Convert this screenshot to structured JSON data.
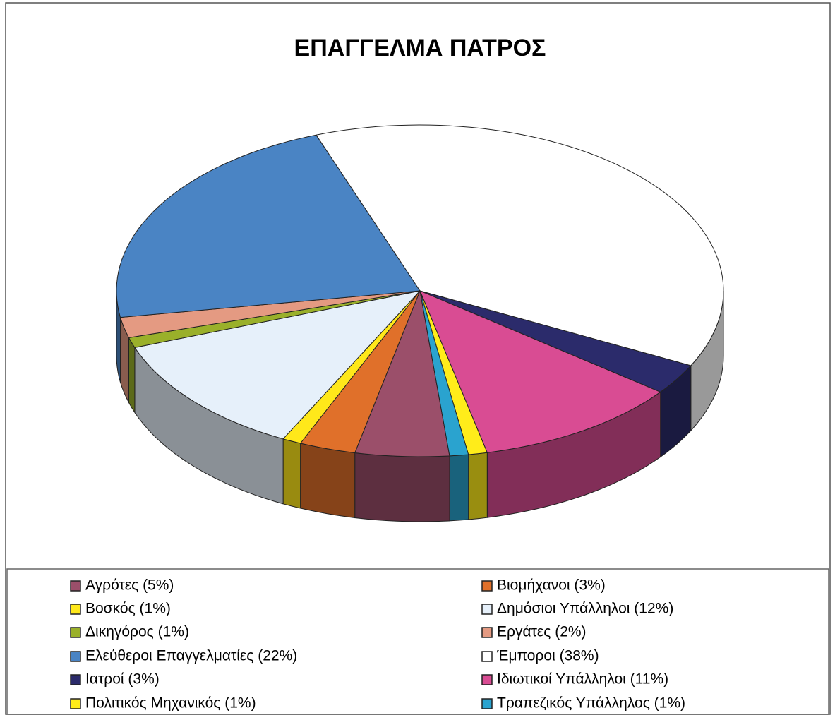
{
  "chart_data": {
    "type": "pie",
    "title": "ΕΠΑΓΓΕΛΜΑ ΠΑΤΡΟΣ",
    "categories": [
      "Αγρότες (5%)",
      "Βιομήχανοι (3%)",
      "Βοσκός (1%)",
      "Δημόσιοι Υπάλληλοι (12%)",
      "Δικηγόρος (1%)",
      "Εργάτες (2%)",
      "Ελεύθεροι Επαγγελματίες (22%)",
      "Έμποροι (38%)",
      "Ιατροί (3%)",
      "Ιδιωτικοί Υπάλληλοι (11%)",
      "Πολιτικός Μηχανικός (1%)",
      "Τραπεζικός Υπάλληλος (1%)"
    ],
    "values": [
      5,
      3,
      1,
      12,
      1,
      2,
      22,
      38,
      3,
      11,
      1,
      1
    ],
    "colors": [
      "#9b4f6a",
      "#e0702a",
      "#ffe81a",
      "#e6f0fa",
      "#9ab02a",
      "#e49a82",
      "#4a84c4",
      "#ffffff",
      "#2b2b6b",
      "#d94c93",
      "#ffec1a",
      "#2aa3cf"
    ],
    "legend": "bottom"
  }
}
